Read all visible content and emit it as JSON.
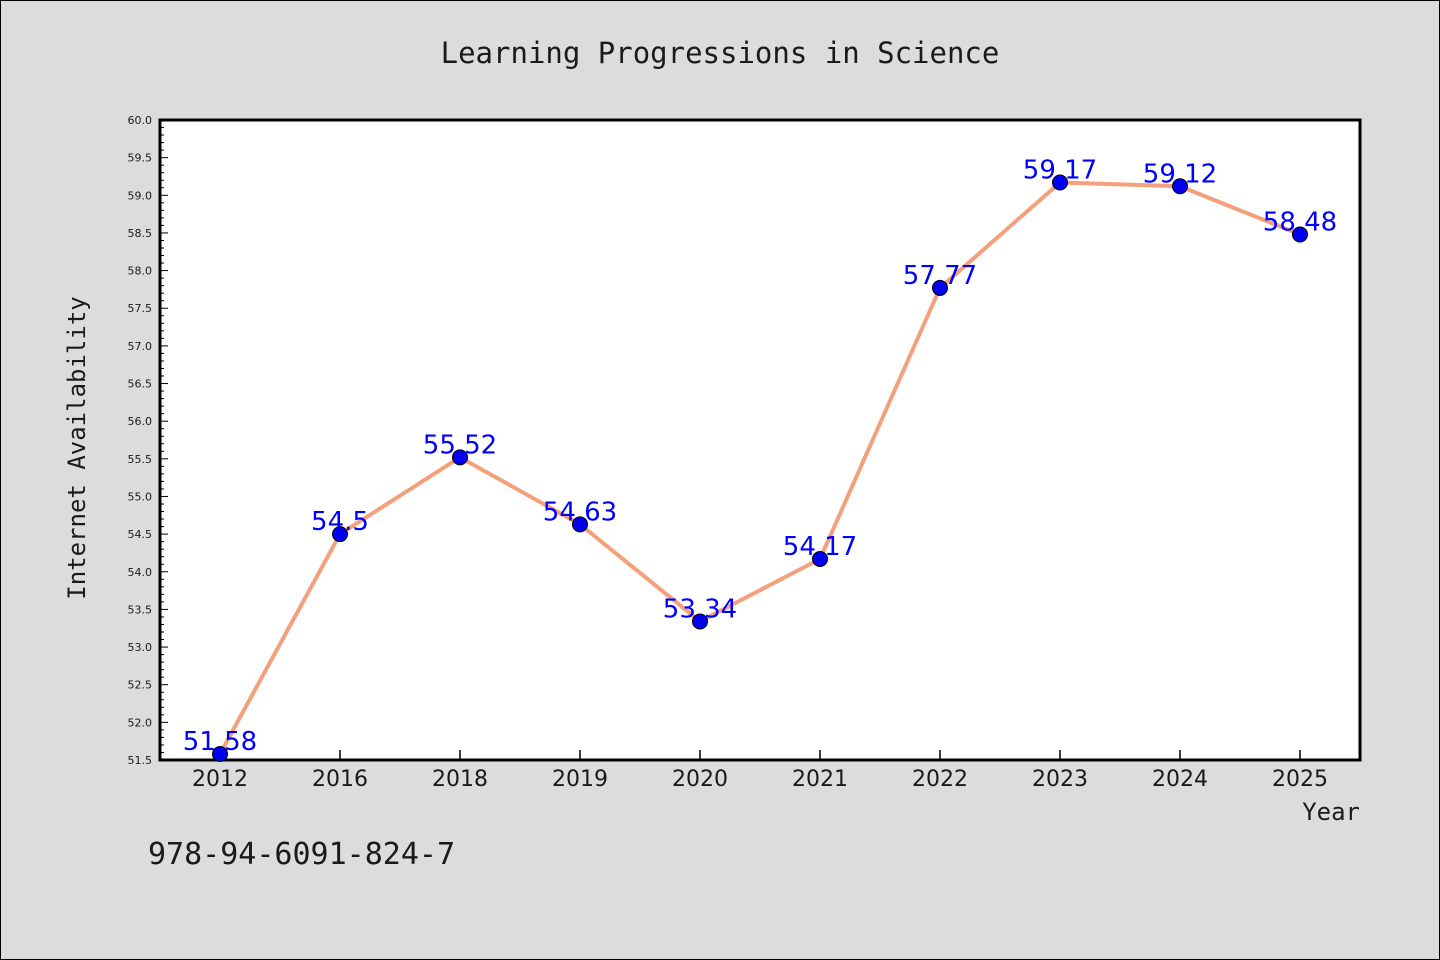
{
  "chart_data": {
    "type": "line",
    "title": "Learning Progressions in Science",
    "xlabel": "Year",
    "ylabel": "Internet Availability",
    "categories": [
      "2012",
      "2016",
      "2018",
      "2019",
      "2020",
      "2021",
      "2022",
      "2023",
      "2024",
      "2025"
    ],
    "series": [
      {
        "values": [
          51.58,
          54.5,
          55.52,
          54.63,
          53.34,
          54.17,
          57.77,
          59.17,
          59.12,
          58.48
        ],
        "labels": [
          "51.58",
          "54.5",
          "55.52",
          "54.63",
          "53.34",
          "54.17",
          "57.77",
          "59.17",
          "59.12",
          "58.48"
        ],
        "line_color": "#f4a07c",
        "marker_color": "#0000ee",
        "label_color": "#0000ff"
      }
    ],
    "ylim": [
      51.5,
      60.0
    ],
    "yticks": [
      "51.5",
      "52.0",
      "52.5",
      "53.0",
      "53.5",
      "54.0",
      "54.5",
      "55.0",
      "55.5",
      "56.0",
      "56.5",
      "57.0",
      "57.5",
      "58.0",
      "58.5",
      "59.0",
      "59.5",
      "60.0"
    ],
    "grid": false,
    "legend": "none"
  },
  "footer_text": "978-94-6091-824-7",
  "colors": {
    "background": "#dcdcdc",
    "plot_area": "#ffffff",
    "axis": "#000000",
    "text": "#1a1a1a"
  }
}
